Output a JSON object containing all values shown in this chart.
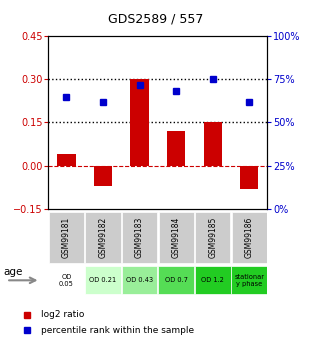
{
  "title": "GDS2589 / 557",
  "samples": [
    "GSM99181",
    "GSM99182",
    "GSM99183",
    "GSM99184",
    "GSM99185",
    "GSM99186"
  ],
  "log2_ratio": [
    0.04,
    -0.07,
    0.3,
    0.12,
    0.15,
    -0.08
  ],
  "percentile_rank": [
    65,
    62,
    72,
    68,
    75,
    62
  ],
  "bar_color": "#cc0000",
  "dot_color": "#0000cc",
  "ylim_left": [
    -0.15,
    0.45
  ],
  "ylim_right": [
    0,
    100
  ],
  "yticks_left": [
    -0.15,
    0.0,
    0.15,
    0.3,
    0.45
  ],
  "yticks_right": [
    0,
    25,
    50,
    75,
    100
  ],
  "age_labels": [
    "OD\n0.05",
    "OD 0.21",
    "OD 0.43",
    "OD 0.7",
    "OD 1.2",
    "stationar\ny phase"
  ],
  "age_colors": [
    "#ffffff",
    "#ccffcc",
    "#99ee99",
    "#55dd55",
    "#22cc22",
    "#22cc22"
  ],
  "gsm_bg_color": "#cccccc",
  "legend_items": [
    {
      "color": "#cc0000",
      "label": "log2 ratio"
    },
    {
      "color": "#0000cc",
      "label": "percentile rank within the sample"
    }
  ]
}
